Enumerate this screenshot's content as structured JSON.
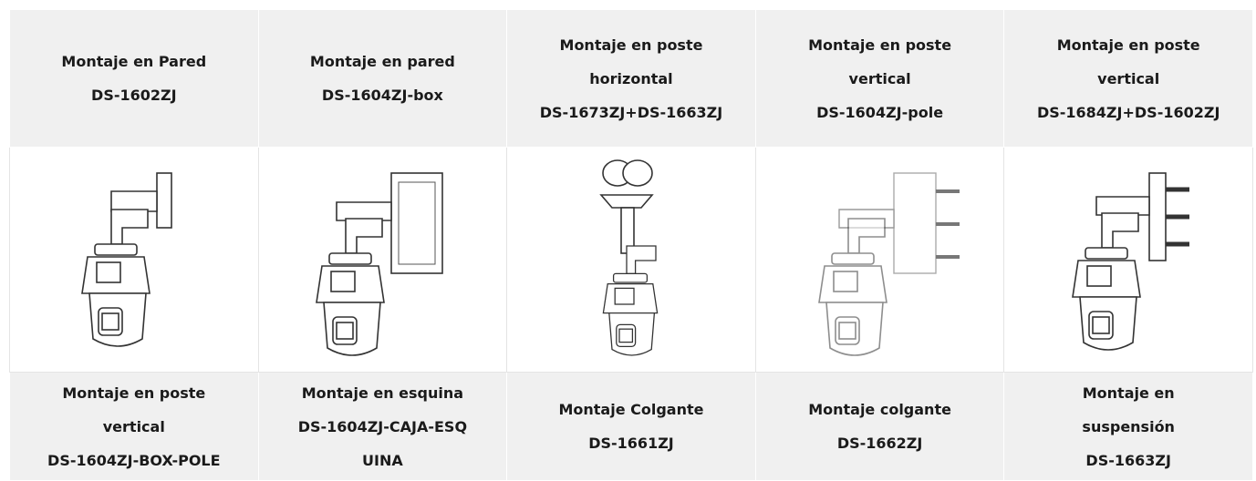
{
  "table": {
    "header": [
      {
        "lines": [
          "Montaje en Pared",
          "DS-1602ZJ"
        ]
      },
      {
        "lines": [
          "Montaje en pared",
          "DS-1604ZJ-box"
        ]
      },
      {
        "lines": [
          "Montaje en poste",
          "horizontal",
          "DS-1673ZJ+DS-1663ZJ"
        ]
      },
      {
        "lines": [
          "Montaje en poste",
          "vertical",
          "DS-1604ZJ-pole"
        ]
      },
      {
        "lines": [
          "Montaje en poste",
          "vertical",
          "DS-1684ZJ+DS-1602ZJ"
        ]
      }
    ],
    "footer": [
      {
        "lines": [
          "Montaje en poste",
          "vertical",
          "DS-1604ZJ-BOX-POLE"
        ]
      },
      {
        "lines": [
          "Montaje en esquina",
          "DS-1604ZJ-CAJA-ESQ",
          "UINA"
        ]
      },
      {
        "lines": [
          "Montaje Colgante",
          "DS-1661ZJ"
        ]
      },
      {
        "lines": [
          "Montaje colgante",
          "DS-1662ZJ"
        ]
      },
      {
        "lines": [
          "Montaje en",
          "suspensión",
          "DS-1663ZJ"
        ]
      }
    ]
  }
}
